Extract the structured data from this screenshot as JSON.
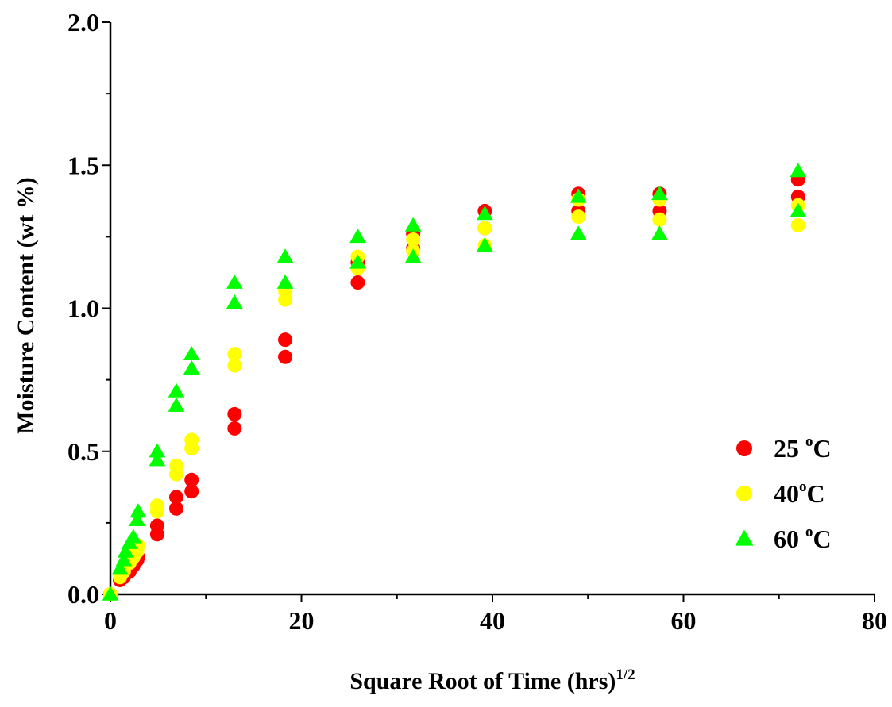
{
  "chart_data": {
    "type": "scatter",
    "title": "",
    "xlabel": "Square Root of Time (hrs)",
    "xlabel_sup": "1/2",
    "ylabel": "Moisture Content (wt %)",
    "xlim": [
      0,
      80
    ],
    "ylim": [
      0,
      2.0
    ],
    "x_ticks": [
      0,
      20,
      40,
      60,
      80
    ],
    "x_tick_labels": [
      "0",
      "20",
      "40",
      "60",
      "80"
    ],
    "y_ticks": [
      0.0,
      0.5,
      1.0,
      1.5,
      2.0
    ],
    "y_tick_labels": [
      "0.0",
      "0.5",
      "1.0",
      "1.5",
      "2.0"
    ],
    "grid": false,
    "legend_position": "bottom-right",
    "series": [
      {
        "name": "25 °C",
        "legend_main": "25 ",
        "legend_sup": "o",
        "legend_tail": "C",
        "marker": "circle",
        "color": "#ff0000",
        "points": [
          [
            0,
            0.0
          ],
          [
            1.0,
            0.05
          ],
          [
            1.4,
            0.06
          ],
          [
            2.0,
            0.08
          ],
          [
            2.4,
            0.1
          ],
          [
            2.8,
            0.12
          ],
          [
            2.9,
            0.13
          ],
          [
            4.9,
            0.21
          ],
          [
            4.9,
            0.24
          ],
          [
            6.9,
            0.3
          ],
          [
            6.9,
            0.34
          ],
          [
            8.5,
            0.36
          ],
          [
            8.5,
            0.4
          ],
          [
            13.0,
            0.58
          ],
          [
            13.0,
            0.63
          ],
          [
            18.3,
            0.83
          ],
          [
            18.3,
            0.89
          ],
          [
            25.9,
            1.09
          ],
          [
            25.9,
            1.16
          ],
          [
            31.7,
            1.21
          ],
          [
            31.7,
            1.26
          ],
          [
            39.2,
            1.28
          ],
          [
            39.2,
            1.34
          ],
          [
            49.0,
            1.34
          ],
          [
            49.0,
            1.4
          ],
          [
            57.5,
            1.34
          ],
          [
            57.5,
            1.4
          ],
          [
            72.0,
            1.39
          ],
          [
            72.0,
            1.45
          ]
        ]
      },
      {
        "name": "40 °C",
        "legend_main": "40",
        "legend_sup": "o",
        "legend_tail": "C",
        "marker": "circle",
        "color": "#ffff00",
        "points": [
          [
            0,
            0.0
          ],
          [
            1.0,
            0.06
          ],
          [
            1.4,
            0.08
          ],
          [
            2.0,
            0.11
          ],
          [
            2.4,
            0.13
          ],
          [
            2.8,
            0.15
          ],
          [
            2.9,
            0.17
          ],
          [
            4.9,
            0.29
          ],
          [
            4.9,
            0.31
          ],
          [
            6.9,
            0.42
          ],
          [
            6.9,
            0.45
          ],
          [
            8.5,
            0.51
          ],
          [
            8.5,
            0.54
          ],
          [
            13.0,
            0.8
          ],
          [
            13.0,
            0.84
          ],
          [
            18.3,
            1.03
          ],
          [
            18.3,
            1.06
          ],
          [
            25.9,
            1.14
          ],
          [
            25.9,
            1.18
          ],
          [
            31.7,
            1.2
          ],
          [
            31.7,
            1.24
          ],
          [
            39.2,
            1.22
          ],
          [
            39.2,
            1.28
          ],
          [
            49.0,
            1.32
          ],
          [
            49.0,
            1.38
          ],
          [
            57.5,
            1.31
          ],
          [
            57.5,
            1.38
          ],
          [
            72.0,
            1.29
          ],
          [
            72.0,
            1.36
          ]
        ]
      },
      {
        "name": "60 °C",
        "legend_main": "60 ",
        "legend_sup": "o",
        "legend_tail": "C",
        "marker": "triangle",
        "color": "#00ff00",
        "points": [
          [
            0,
            0.0
          ],
          [
            1.0,
            0.09
          ],
          [
            1.4,
            0.12
          ],
          [
            1.6,
            0.15
          ],
          [
            2.0,
            0.18
          ],
          [
            2.4,
            0.2
          ],
          [
            2.8,
            0.26
          ],
          [
            2.9,
            0.29
          ],
          [
            4.9,
            0.47
          ],
          [
            4.9,
            0.5
          ],
          [
            6.9,
            0.66
          ],
          [
            6.9,
            0.71
          ],
          [
            8.5,
            0.79
          ],
          [
            8.5,
            0.84
          ],
          [
            13.0,
            1.02
          ],
          [
            13.0,
            1.09
          ],
          [
            18.3,
            1.09
          ],
          [
            18.3,
            1.18
          ],
          [
            25.9,
            1.16
          ],
          [
            25.9,
            1.25
          ],
          [
            31.7,
            1.18
          ],
          [
            31.7,
            1.29
          ],
          [
            39.2,
            1.22
          ],
          [
            39.2,
            1.33
          ],
          [
            49.0,
            1.26
          ],
          [
            49.0,
            1.39
          ],
          [
            57.5,
            1.26
          ],
          [
            57.5,
            1.4
          ],
          [
            72.0,
            1.34
          ],
          [
            72.0,
            1.48
          ]
        ]
      }
    ]
  }
}
